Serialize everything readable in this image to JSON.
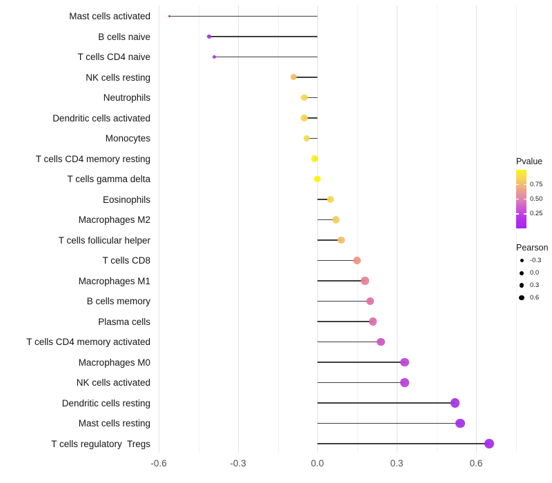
{
  "style": {
    "background": "#ffffff",
    "stem_color": "#3d3d3d",
    "major_grid_color": "#e3e3e3",
    "minor_grid_color": "#f2f2f2",
    "axis_text_color": "#4d4d4d",
    "label_text_color": "#141414"
  },
  "chart_data": {
    "type": "scatter",
    "subtype": "lollipop",
    "title": "",
    "xlabel": "",
    "ylabel": "",
    "x_tick_labels": [
      "-0.6",
      "-0.3",
      "0.0",
      "0.3",
      "0.6"
    ],
    "x_tick_values": [
      -0.6,
      -0.3,
      0.0,
      0.3,
      0.6
    ],
    "x_minor_values": [
      -0.45,
      -0.15,
      0.15,
      0.45,
      0.75
    ],
    "xlim": [
      -0.62,
      0.775
    ],
    "grid": "vertical gridlines only, light gray, white background",
    "legend_position": "right",
    "rows": [
      {
        "label": "Mast cells activated",
        "pearson": -0.56,
        "pvalue_approx": 0.1,
        "color": "#9531d6"
      },
      {
        "label": "B cells naive",
        "pearson": -0.41,
        "pvalue_approx": 0.12,
        "color": "#9b36d9"
      },
      {
        "label": "T cells CD4 naive",
        "pearson": -0.39,
        "pvalue_approx": 0.13,
        "color": "#a43ad6"
      },
      {
        "label": "NK cells resting",
        "pearson": -0.09,
        "pvalue_approx": 0.7,
        "color": "#efc05e"
      },
      {
        "label": "Neutrophils",
        "pearson": -0.05,
        "pvalue_approx": 0.8,
        "color": "#f4d84c"
      },
      {
        "label": "Dendritic cells activated",
        "pearson": -0.05,
        "pvalue_approx": 0.8,
        "color": "#f4d54e"
      },
      {
        "label": "Monocytes",
        "pearson": -0.04,
        "pvalue_approx": 0.82,
        "color": "#f2da4a"
      },
      {
        "label": "T cells CD4 memory resting",
        "pearson": -0.01,
        "pvalue_approx": 0.96,
        "color": "#faef1c"
      },
      {
        "label": "T cells gamma delta",
        "pearson": 0.0,
        "pvalue_approx": 0.98,
        "color": "#fdf207"
      },
      {
        "label": "Eosinophils",
        "pearson": 0.05,
        "pvalue_approx": 0.8,
        "color": "#f8d64b"
      },
      {
        "label": "Macrophages M2",
        "pearson": 0.07,
        "pvalue_approx": 0.74,
        "color": "#f6cc58"
      },
      {
        "label": "T cells follicular helper",
        "pearson": 0.09,
        "pvalue_approx": 0.66,
        "color": "#f2bf69"
      },
      {
        "label": "T cells CD8",
        "pearson": 0.15,
        "pvalue_approx": 0.52,
        "color": "#ec9581"
      },
      {
        "label": "Macrophages M1",
        "pearson": 0.18,
        "pvalue_approx": 0.46,
        "color": "#e68193"
      },
      {
        "label": "B cells memory",
        "pearson": 0.2,
        "pvalue_approx": 0.38,
        "color": "#de6fa6"
      },
      {
        "label": "Plasma cells",
        "pearson": 0.21,
        "pvalue_approx": 0.37,
        "color": "#dc6ca9"
      },
      {
        "label": "T cells CD4 memory activated",
        "pearson": 0.24,
        "pvalue_approx": 0.27,
        "color": "#cd53c3"
      },
      {
        "label": "Macrophages M0",
        "pearson": 0.33,
        "pvalue_approx": 0.18,
        "color": "#bd41d7"
      },
      {
        "label": "NK cells activated",
        "pearson": 0.33,
        "pvalue_approx": 0.17,
        "color": "#b93edc"
      },
      {
        "label": "Dendritic cells resting",
        "pearson": 0.52,
        "pvalue_approx": 0.1,
        "color": "#a630e5"
      },
      {
        "label": "Mast cells resting",
        "pearson": 0.54,
        "pvalue_approx": 0.09,
        "color": "#a42de7"
      },
      {
        "label": "T cells regulatory  Tregs",
        "pearson": 0.65,
        "pvalue_approx": 0.07,
        "color": "#a329ea"
      }
    ],
    "legends": {
      "pvalue": {
        "title": "Pvalue",
        "tick_labels": [
          "0.75",
          "0.50",
          "0.25"
        ],
        "tick_values": [
          0.75,
          0.5,
          0.25
        ],
        "range": [
          0.0,
          1.0
        ],
        "gradient_top_to_bottom": [
          "#fbf321",
          "#f5d25d",
          "#eca687",
          "#e184ad",
          "#cd56d4",
          "#b331ea",
          "#a825f2"
        ]
      },
      "pearson": {
        "title": "Pearson",
        "items": [
          {
            "label": "-0.3",
            "value": -0.3
          },
          {
            "label": "0.0",
            "value": 0.0
          },
          {
            "label": "0.3",
            "value": 0.3
          },
          {
            "label": "0.6",
            "value": 0.6
          }
        ]
      }
    }
  }
}
